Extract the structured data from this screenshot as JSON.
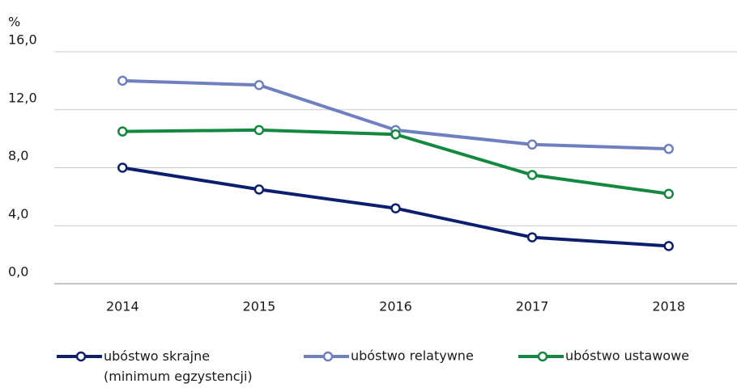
{
  "chart_data": {
    "type": "line",
    "ylabel": "%",
    "categories": [
      "2014",
      "2015",
      "2016",
      "2017",
      "2018"
    ],
    "series": [
      {
        "name": "ubóstwo skrajne (minimum egzystencji)",
        "color": "#0c1f6e",
        "values": [
          8.0,
          6.5,
          5.2,
          3.2,
          2.6
        ]
      },
      {
        "name": "ubóstwo relatywne",
        "color": "#6f80c0",
        "values": [
          14.0,
          13.7,
          10.6,
          9.6,
          9.3
        ]
      },
      {
        "name": "ubóstwo ustawowe",
        "color": "#12893f",
        "values": [
          10.5,
          10.6,
          10.3,
          7.5,
          6.2
        ]
      }
    ],
    "ylim": [
      0,
      16
    ],
    "yticks": [
      {
        "value": 0,
        "label": "0,0"
      },
      {
        "value": 4,
        "label": "4,0"
      },
      {
        "value": 8,
        "label": "8,0"
      },
      {
        "value": 12,
        "label": "12,0"
      },
      {
        "value": 16,
        "label": "16,0"
      }
    ],
    "grid": true,
    "legend": "bottom"
  }
}
